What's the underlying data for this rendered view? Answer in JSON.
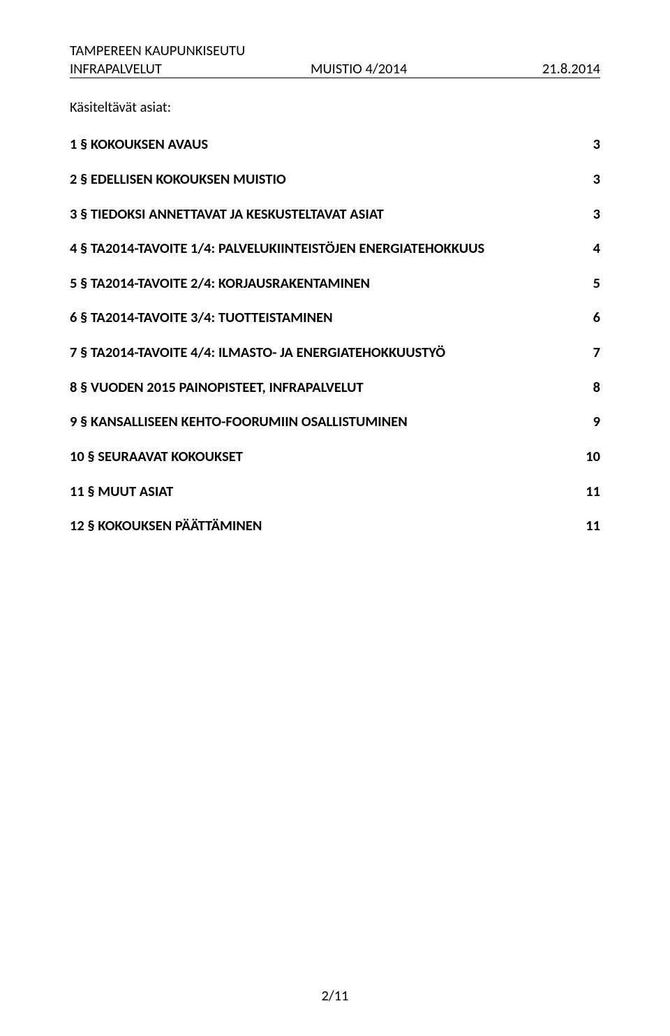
{
  "header": {
    "line1_left": "TAMPEREEN KAUPUNKISEUTU",
    "line2_left": "INFRAPALVELUT",
    "line2_mid": "MUISTIO 4/2014",
    "line2_right": "21.8.2014"
  },
  "section_title": "Käsiteltävät asiat:",
  "toc": [
    {
      "label": "1 § KOKOUKSEN AVAUS",
      "page": "3"
    },
    {
      "label": "2 § EDELLISEN KOKOUKSEN MUISTIO",
      "page": "3"
    },
    {
      "label": "3 § TIEDOKSI ANNETTAVAT JA KESKUSTELTAVAT ASIAT",
      "page": "3"
    },
    {
      "label": "4 § TA2014-TAVOITE 1/4: PALVELUKIINTEISTÖJEN ENERGIATEHOKKUUS",
      "page": "4"
    },
    {
      "label": "5 § TA2014-TAVOITE 2/4: KORJAUSRAKENTAMINEN",
      "page": "5"
    },
    {
      "label": "6 § TA2014-TAVOITE 3/4: TUOTTEISTAMINEN",
      "page": "6"
    },
    {
      "label": "7 § TA2014-TAVOITE 4/4: ILMASTO- JA ENERGIATEHOKKUUSTYÖ",
      "page": "7"
    },
    {
      "label": "8 § VUODEN 2015 PAINOPISTEET, INFRAPALVELUT",
      "page": "8"
    },
    {
      "label": "9 § KANSALLISEEN KEHTO-FOORUMIIN OSALLISTUMINEN",
      "page": "9"
    },
    {
      "label": "10 § SEURAAVAT KOKOUKSET",
      "page": "10"
    },
    {
      "label": "11 § MUUT ASIAT",
      "page": "11"
    },
    {
      "label": "12 § KOKOUKSEN PÄÄTTÄMINEN",
      "page": "11"
    }
  ],
  "footer": "2/11"
}
